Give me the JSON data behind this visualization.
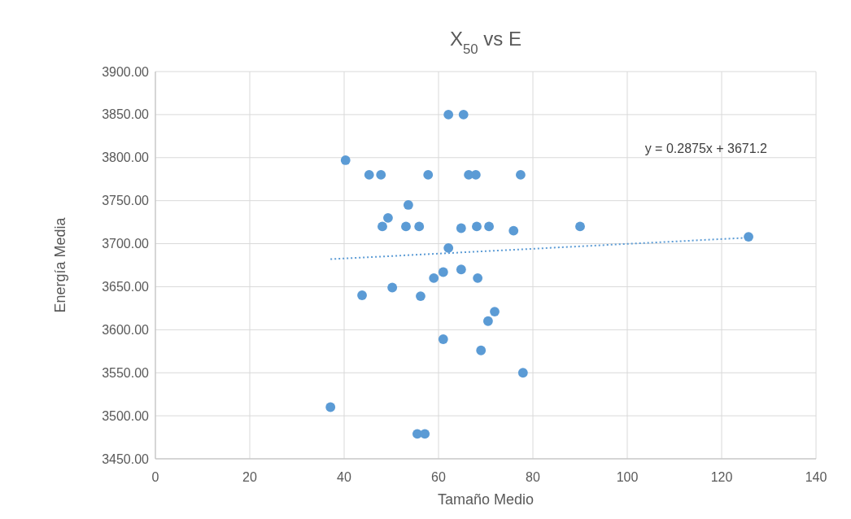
{
  "chart_data": {
    "type": "scatter",
    "title": "X$_{50}$ vs E",
    "xlabel": "Tamaño Medio",
    "ylabel": "Energía Media",
    "xlim": [
      0,
      140
    ],
    "xticks": [
      0,
      20,
      40,
      60,
      80,
      100,
      120,
      140
    ],
    "ylim": [
      3450,
      3900
    ],
    "yticks": [
      {
        "value": 3450,
        "label": "3450.00"
      },
      {
        "value": 3500,
        "label": "3500.00"
      },
      {
        "value": 3550,
        "label": "3550.00"
      },
      {
        "value": 3600,
        "label": "3600.00"
      },
      {
        "value": 3650,
        "label": "3650.00"
      },
      {
        "value": 3700,
        "label": "3700.00"
      },
      {
        "value": 3750,
        "label": "3750.00"
      },
      {
        "value": 3800,
        "label": "3800.00"
      },
      {
        "value": 3850,
        "label": "3850.00"
      },
      {
        "value": 3900,
        "label": "3900.00"
      }
    ],
    "grid": true,
    "marker": "circle",
    "series": [
      {
        "color": "#5b9bd5",
        "x": [
          40.3,
          45.3,
          47.8,
          57.8,
          66.4,
          67.9,
          77.4,
          62.1,
          65.3,
          53.6,
          49.3,
          48.1,
          53.1,
          55.9,
          64.8,
          68.1,
          70.7,
          75.9,
          90,
          125.7,
          62.1,
          61,
          64.8,
          59,
          68.3,
          43.8,
          50.2,
          56.2,
          71.9,
          70.5,
          61,
          69,
          77.9,
          37.1,
          55.5,
          57.1
        ],
        "values": [
          3797,
          3780,
          3780,
          3780,
          3780,
          3780,
          3780,
          3850,
          3850,
          3745,
          3730,
          3720,
          3720,
          3720,
          3718,
          3720,
          3720,
          3715,
          3720,
          3708,
          3695,
          3667,
          3670,
          3660,
          3660,
          3640,
          3649,
          3639,
          3621,
          3610,
          3589,
          3576,
          3550,
          3510,
          3479,
          3479
        ]
      },
      {
        "type": "line",
        "color": "#5b9bd5",
        "line_style": "dotted",
        "marker": "none",
        "x": [
          37.1,
          125.7
        ],
        "values": [
          3682,
          3707
        ]
      }
    ],
    "annotations": [
      "y = 0.2875x + 3671.2"
    ]
  }
}
